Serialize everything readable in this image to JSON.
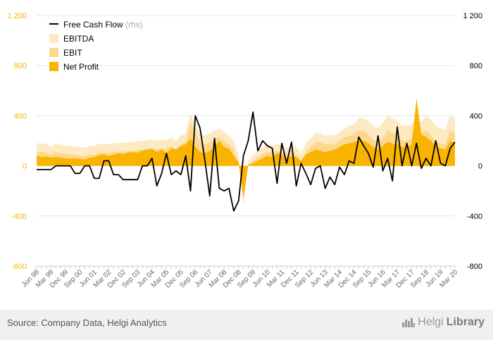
{
  "chart_data": {
    "type": "area",
    "x": [
      "Jun 98",
      "Sep 98",
      "Dec 98",
      "Mar 99",
      "Jun 99",
      "Sep 99",
      "Dec 99",
      "Mar 00",
      "Jun 00",
      "Sep 00",
      "Dec 00",
      "Mar 01",
      "Jun 01",
      "Sep 01",
      "Dec 01",
      "Mar 02",
      "Jun 02",
      "Sep 02",
      "Dec 02",
      "Mar 03",
      "Jun 03",
      "Sep 03",
      "Dec 03",
      "Mar 04",
      "Jun 04",
      "Sep 04",
      "Dec 04",
      "Mar 05",
      "Jun 05",
      "Sep 05",
      "Dec 05",
      "Mar 06",
      "Jun 06",
      "Sep 06",
      "Dec 06",
      "Mar 07",
      "Jun 07",
      "Sep 07",
      "Dec 07",
      "Mar 08",
      "Jun 08",
      "Sep 08",
      "Dec 08",
      "Mar 09",
      "Jun 09",
      "Sep 09",
      "Dec 09",
      "Mar 10",
      "Jun 10",
      "Sep 10",
      "Dec 10",
      "Mar 11",
      "Jun 11",
      "Sep 11",
      "Dec 11",
      "Mar 12",
      "Jun 12",
      "Sep 12",
      "Dec 12",
      "Mar 13",
      "Jun 13",
      "Sep 13",
      "Dec 13",
      "Mar 14",
      "Jun 14",
      "Sep 14",
      "Dec 14",
      "Mar 15",
      "Jun 15",
      "Sep 15",
      "Dec 15",
      "Mar 16",
      "Jun 16",
      "Sep 16",
      "Dec 16",
      "Mar 17",
      "Jun 17",
      "Sep 17",
      "Dec 17",
      "Mar 18",
      "Jun 18",
      "Sep 18",
      "Dec 18",
      "Mar 19",
      "Jun 19",
      "Sep 19",
      "Dec 19",
      "Mar 20"
    ],
    "xtick_labels": [
      "Jun 98",
      "Mar 99",
      "Dec 99",
      "Sep 00",
      "Jun 01",
      "Mar 02",
      "Dec 02",
      "Sep 03",
      "Jun 04",
      "Mar 05",
      "Dec 05",
      "Sep 06",
      "Jun 07",
      "Mar 08",
      "Dec 08",
      "Sep 09",
      "Jun 10",
      "Mar 11",
      "Dec 11",
      "Sep 12",
      "Jun 13",
      "Mar 14",
      "Dec 14",
      "Sep 15",
      "Jun 16",
      "Mar 17",
      "Dec 17",
      "Sep 18",
      "Jun 19",
      "Mar 20"
    ],
    "series": [
      {
        "name": "EBITDA",
        "kind": "area",
        "color": "#fde9c2",
        "values": [
          180,
          180,
          175,
          150,
          180,
          170,
          165,
          160,
          155,
          150,
          145,
          160,
          160,
          175,
          175,
          170,
          180,
          185,
          180,
          190,
          190,
          195,
          200,
          205,
          210,
          200,
          210,
          205,
          230,
          200,
          240,
          260,
          420,
          330,
          260,
          240,
          260,
          280,
          300,
          270,
          240,
          200,
          90,
          -280,
          40,
          80,
          120,
          150,
          170,
          160,
          180,
          170,
          140,
          160,
          150,
          100,
          180,
          220,
          260,
          260,
          240,
          250,
          240,
          270,
          300,
          320,
          330,
          380,
          380,
          360,
          320,
          300,
          340,
          400,
          380,
          360,
          320,
          320,
          330,
          380,
          350,
          400,
          370,
          320,
          300,
          290,
          400,
          380
        ]
      },
      {
        "name": "EBIT",
        "kind": "area",
        "color": "#fdd78a",
        "values": [
          110,
          110,
          105,
          85,
          110,
          100,
          95,
          90,
          85,
          80,
          75,
          90,
          90,
          105,
          105,
          100,
          110,
          115,
          110,
          120,
          120,
          125,
          130,
          135,
          140,
          130,
          140,
          135,
          160,
          130,
          170,
          190,
          350,
          260,
          190,
          170,
          190,
          210,
          230,
          200,
          170,
          130,
          20,
          -300,
          10,
          40,
          70,
          90,
          110,
          100,
          120,
          110,
          80,
          100,
          90,
          40,
          110,
          150,
          190,
          190,
          170,
          180,
          170,
          200,
          230,
          240,
          250,
          280,
          280,
          250,
          210,
          180,
          220,
          280,
          260,
          240,
          200,
          200,
          220,
          400,
          260,
          280,
          240,
          200,
          180,
          170,
          280,
          260
        ]
      },
      {
        "name": "Net Profit",
        "kind": "area",
        "color": "#f8b400",
        "values": [
          80,
          70,
          75,
          65,
          70,
          65,
          60,
          55,
          60,
          55,
          50,
          65,
          70,
          85,
          90,
          80,
          90,
          100,
          95,
          105,
          110,
          105,
          120,
          130,
          135,
          110,
          130,
          100,
          140,
          130,
          160,
          170,
          220,
          150,
          110,
          100,
          120,
          150,
          200,
          150,
          140,
          80,
          30,
          -250,
          5,
          20,
          40,
          60,
          80,
          70,
          100,
          90,
          60,
          80,
          70,
          40,
          90,
          110,
          130,
          120,
          110,
          120,
          130,
          150,
          170,
          180,
          190,
          200,
          200,
          180,
          150,
          130,
          160,
          190,
          180,
          170,
          150,
          150,
          170,
          540,
          250,
          230,
          200,
          160,
          140,
          130,
          200,
          180
        ]
      },
      {
        "name": "Free Cash Flow",
        "kind": "line",
        "axis": "rhs",
        "color": "#000000",
        "values": [
          -30,
          -30,
          -30,
          -30,
          0,
          0,
          0,
          0,
          -60,
          -60,
          0,
          0,
          -100,
          -100,
          40,
          40,
          -70,
          -70,
          -110,
          -110,
          -110,
          -110,
          0,
          0,
          60,
          -160,
          -60,
          100,
          -70,
          -40,
          -70,
          80,
          -200,
          400,
          300,
          40,
          -240,
          220,
          -180,
          -200,
          -180,
          -360,
          -280,
          80,
          200,
          430,
          120,
          200,
          160,
          140,
          -140,
          180,
          20,
          190,
          -160,
          20,
          -60,
          -150,
          -20,
          0,
          -180,
          -90,
          -150,
          -10,
          -70,
          40,
          20,
          230,
          160,
          100,
          -10,
          240,
          -40,
          60,
          -120,
          310,
          0,
          180,
          0,
          180,
          -20,
          60,
          0,
          200,
          20,
          0,
          140,
          190
        ]
      }
    ],
    "ylim": [
      -800,
      1200
    ],
    "yticks": [
      -800,
      -400,
      0,
      400,
      800,
      1200
    ],
    "ytick_labels": [
      "-800",
      "-400",
      "0",
      "400",
      "800",
      "1 200"
    ],
    "grid": "horizontal",
    "legend_position": "top-left",
    "legend": [
      {
        "label": "Free Cash Flow",
        "suffix": "(rhs)",
        "symbol": "line",
        "color": "#000000"
      },
      {
        "label": "EBITDA",
        "symbol": "box",
        "color": "#fde9c2"
      },
      {
        "label": "EBIT",
        "symbol": "box",
        "color": "#fdd78a"
      },
      {
        "label": "Net Profit",
        "symbol": "box",
        "color": "#f8b400"
      }
    ],
    "left_axis_color": "#f8b400",
    "right_axis_color": "#000000"
  },
  "footer": {
    "source": "Source: Company Data, Helgi Analytics",
    "brand_part1": "Helgi",
    "brand_part2": "Library",
    "brand_icon": "city-skyline-icon"
  }
}
